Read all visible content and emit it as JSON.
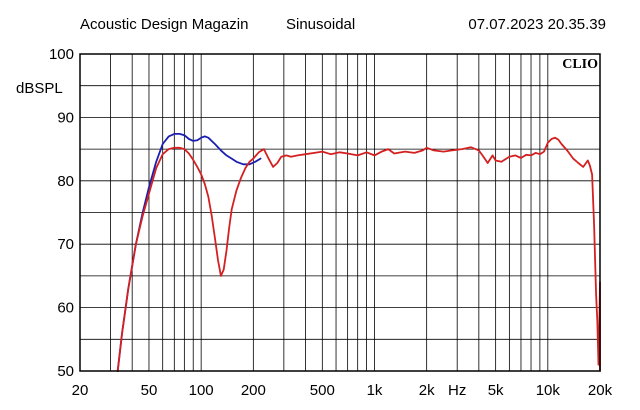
{
  "header": {
    "left": "Acoustic Design Magazin",
    "middle": "Sinusoidal",
    "right": "07.07.2023 20.35.39"
  },
  "chart_data": {
    "type": "line",
    "ylabel": "dBSPL",
    "xlabel": "Hz",
    "brand": "CLIO",
    "xscale": "log",
    "xlim": [
      20,
      20000
    ],
    "ylim": [
      50,
      100
    ],
    "grid": true,
    "x_tick_labels": [
      {
        "value": 20,
        "label": "20"
      },
      {
        "value": 50,
        "label": "50"
      },
      {
        "value": 100,
        "label": "100"
      },
      {
        "value": 200,
        "label": "200"
      },
      {
        "value": 500,
        "label": "500"
      },
      {
        "value": 1000,
        "label": "1k"
      },
      {
        "value": 2000,
        "label": "2k"
      },
      {
        "value": 5000,
        "label": "5k"
      },
      {
        "value": 10000,
        "label": "10k"
      },
      {
        "value": 20000,
        "label": "20k"
      }
    ],
    "y_tick_labels": [
      50,
      60,
      70,
      80,
      90,
      100
    ],
    "series": [
      {
        "color": "#1b1fb0",
        "x": [
          33,
          35,
          38,
          42,
          46,
          50,
          55,
          60,
          65,
          70,
          75,
          80,
          85,
          90,
          95,
          100,
          105,
          110,
          120,
          130,
          140,
          150,
          160,
          175,
          190,
          205,
          220
        ],
        "y": [
          50,
          56,
          63,
          70,
          75,
          79,
          83,
          85.8,
          87,
          87.4,
          87.4,
          87.2,
          86.6,
          86.3,
          86.4,
          86.8,
          87,
          86.8,
          85.8,
          84.8,
          84,
          83.5,
          83,
          82.6,
          82.6,
          83,
          83.5
        ]
      },
      {
        "color": "#d42020",
        "x": [
          33,
          35,
          38,
          42,
          46,
          50,
          55,
          60,
          65,
          70,
          75,
          80,
          85,
          90,
          95,
          100,
          105,
          110,
          115,
          120,
          125,
          130,
          135,
          140,
          145,
          150,
          160,
          170,
          180,
          190,
          200,
          215,
          230,
          245,
          260,
          275,
          290,
          310,
          330,
          360,
          400,
          450,
          500,
          560,
          630,
          700,
          800,
          900,
          1000,
          1100,
          1200,
          1300,
          1500,
          1700,
          1900,
          2000,
          2200,
          2500,
          2800,
          3200,
          3600,
          4000,
          4200,
          4500,
          4800,
          5000,
          5400,
          6000,
          6500,
          7000,
          7500,
          8000,
          8500,
          9000,
          9500,
          10000,
          10500,
          11000,
          11500,
          12000,
          13000,
          14000,
          15000,
          16000,
          17000,
          17500,
          18000,
          18500,
          19000,
          19300,
          19600,
          19800,
          20000,
          20200,
          20500,
          20700,
          21000
        ],
        "y": [
          50,
          56,
          63,
          70,
          74.5,
          78,
          82,
          84.2,
          85,
          85.2,
          85.2,
          85,
          84.3,
          83.3,
          82.2,
          81,
          79.5,
          77.5,
          74.5,
          71,
          67.5,
          65,
          66,
          69,
          72.5,
          75.5,
          78.5,
          80.5,
          82,
          83,
          83.5,
          84.5,
          85,
          83.5,
          82.2,
          82.8,
          83.8,
          84,
          83.8,
          84,
          84.2,
          84.4,
          84.6,
          84.2,
          84.5,
          84.3,
          84,
          84.5,
          84,
          84.6,
          85,
          84.3,
          84.6,
          84.4,
          84.8,
          85.2,
          84.8,
          84.6,
          84.8,
          85,
          85.3,
          84.8,
          84,
          82.8,
          84,
          83.2,
          83,
          83.8,
          84,
          83.6,
          84.1,
          84,
          84.4,
          84.2,
          84.6,
          86,
          86.6,
          86.8,
          86.5,
          85.8,
          84.7,
          83.5,
          82.8,
          82.2,
          83.2,
          82.4,
          81,
          73,
          62,
          58,
          51,
          56,
          64,
          60,
          50,
          57,
          50
        ]
      }
    ]
  }
}
